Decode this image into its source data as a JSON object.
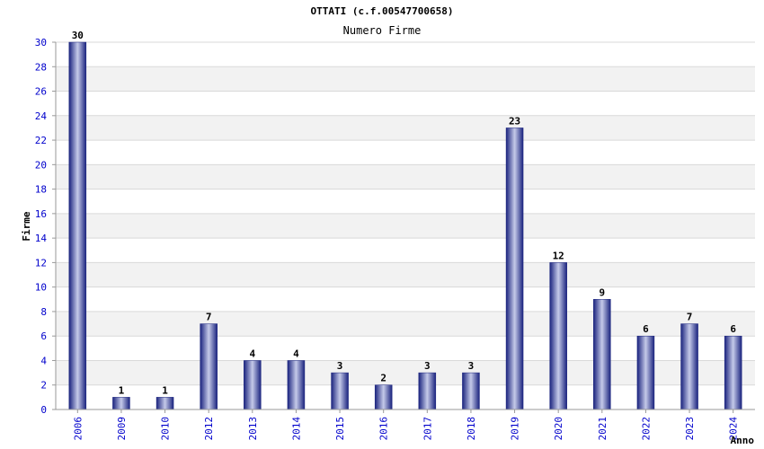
{
  "header": {
    "title": "OTTATI (c.f.00547700658)",
    "subtitle": "Numero Firme"
  },
  "chart_data": {
    "type": "bar",
    "title": "OTTATI (c.f.00547700658)",
    "subtitle": "Numero Firme",
    "xlabel": "Anno",
    "ylabel": "Firme",
    "categories": [
      "2006",
      "2009",
      "2010",
      "2012",
      "2013",
      "2014",
      "2015",
      "2016",
      "2017",
      "2018",
      "2019",
      "2020",
      "2021",
      "2022",
      "2023",
      "2024"
    ],
    "values": [
      30,
      1,
      1,
      7,
      4,
      4,
      3,
      2,
      3,
      3,
      23,
      12,
      9,
      6,
      7,
      6
    ],
    "ylim": [
      0,
      30
    ],
    "yticks": [
      0,
      2,
      4,
      6,
      8,
      10,
      12,
      14,
      16,
      18,
      20,
      22,
      24,
      26,
      28,
      30
    ],
    "grid": true,
    "colors": {
      "bar_dark": "#1a237e",
      "bar_light": "#c5cae9",
      "tick_text": "#0000cc",
      "band": "#f2f2f2"
    }
  }
}
